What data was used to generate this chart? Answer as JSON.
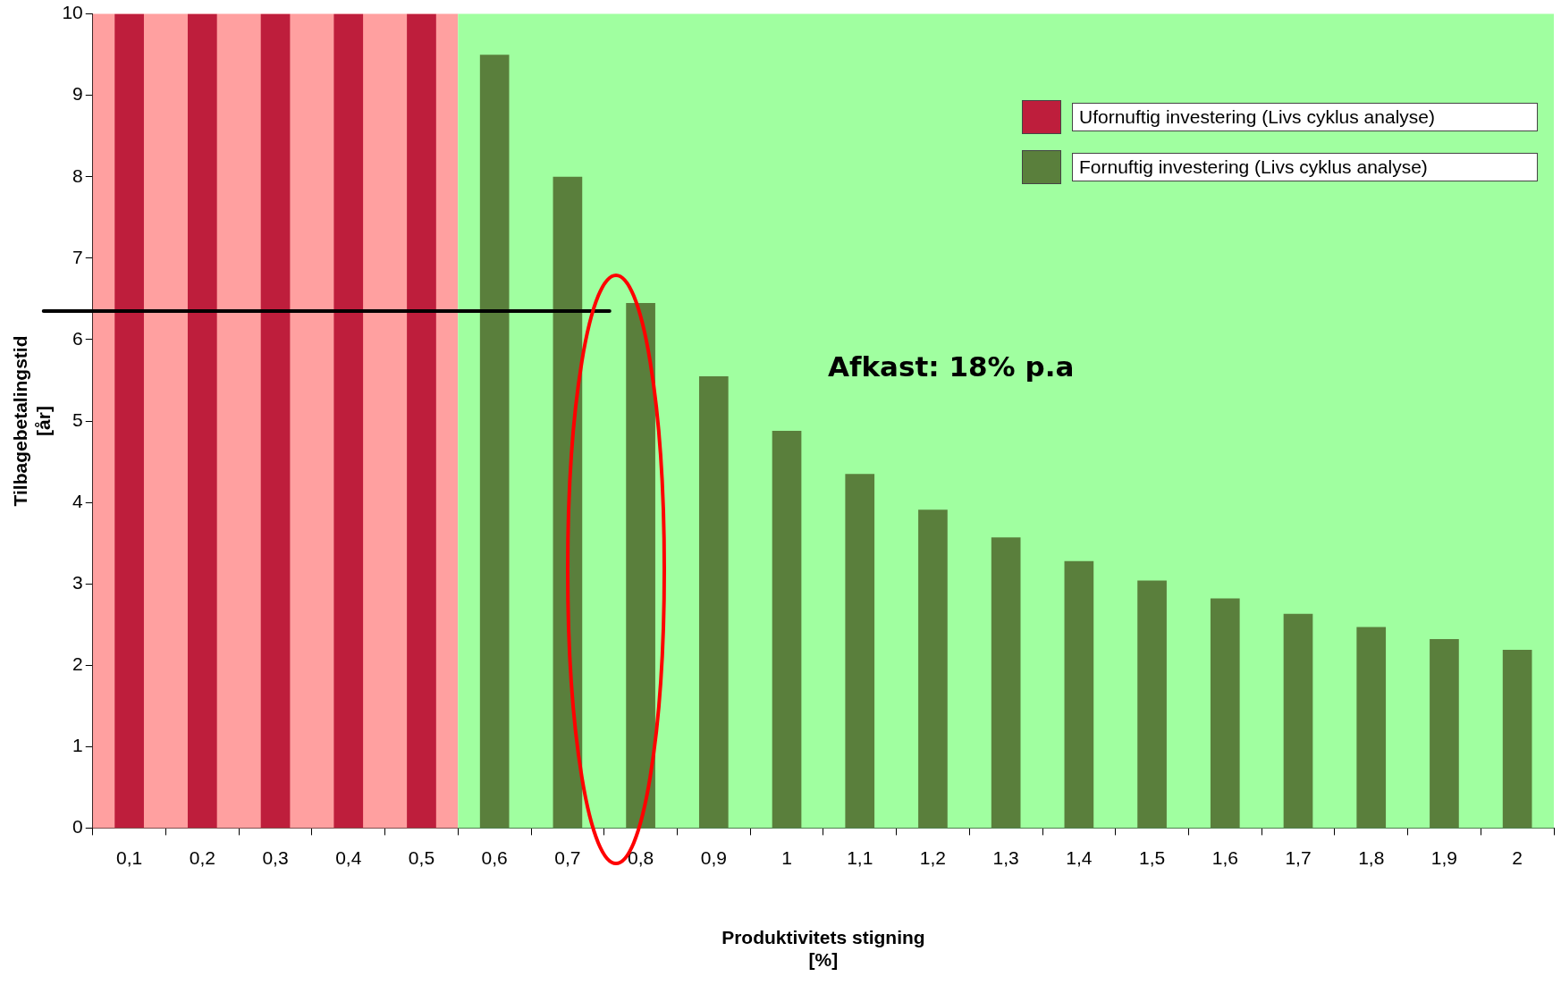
{
  "chart_data": {
    "type": "bar",
    "xlabel": "Produktivitets stigning\n[%]",
    "ylabel": "Tilbagebetalingstid\n[år]",
    "categories": [
      "0,1",
      "0,2",
      "0,3",
      "0,4",
      "0,5",
      "0,6",
      "0,7",
      "0,8",
      "0,9",
      "1",
      "1,1",
      "1,2",
      "1,3",
      "1,4",
      "1,5",
      "1,6",
      "1,7",
      "1,8",
      "1,9",
      "2"
    ],
    "series": [
      {
        "name": "Ufornuftig investering (Livs cyklus analyse)",
        "color": "#be1e3c",
        "values": [
          10,
          10,
          10,
          10,
          10,
          null,
          null,
          null,
          null,
          null,
          null,
          null,
          null,
          null,
          null,
          null,
          null,
          null,
          null,
          null
        ]
      },
      {
        "name": "Fornuftig investering (Livs cyklus analyse)",
        "color": "#5a7f3c",
        "values": [
          null,
          null,
          null,
          null,
          null,
          9.5,
          8.0,
          6.45,
          5.55,
          4.88,
          4.35,
          3.91,
          3.57,
          3.28,
          3.04,
          2.82,
          2.63,
          2.47,
          2.32,
          2.19
        ]
      }
    ],
    "ylim": [
      0,
      10
    ],
    "yticks": [
      0,
      1,
      2,
      3,
      4,
      5,
      6,
      7,
      8,
      9,
      10
    ],
    "grid": false,
    "legend": "top right",
    "bands": [
      {
        "axis": "x",
        "from": "0,1",
        "to": "0,5",
        "color": "#ffa0a0"
      },
      {
        "axis": "x",
        "from": "0,6",
        "to": "2",
        "color": "#a0ffa0"
      }
    ],
    "ref_lines": [
      {
        "axis": "y",
        "value": 6.35,
        "color": "#000000"
      }
    ],
    "annotations": [
      "Afkast: 18% p.a"
    ]
  }
}
